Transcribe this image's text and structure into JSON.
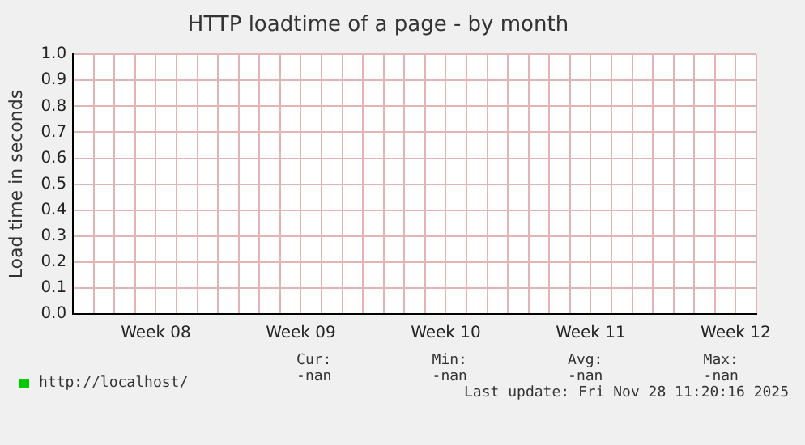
{
  "chart_data": {
    "type": "line",
    "title": "HTTP loadtime of a page - by month",
    "ylabel": "Load time in seconds",
    "categories": [
      null,
      null,
      null,
      null,
      "Week 08",
      null,
      null,
      null,
      null,
      null,
      null,
      "Week 09",
      null,
      null,
      null,
      null,
      null,
      null,
      "Week 10",
      null,
      null,
      null,
      null,
      null,
      null,
      "Week 11",
      null,
      null,
      null,
      null,
      null,
      null,
      "Week 12",
      null
    ],
    "series": [
      {
        "name": "http://localhost/",
        "color": "#00cc00",
        "values": [
          null,
          null,
          null,
          null,
          null,
          null,
          null,
          null,
          null,
          null,
          null,
          null,
          null,
          null,
          null,
          null,
          null,
          null,
          null,
          null,
          null,
          null,
          null,
          null,
          null,
          null,
          null,
          null,
          null,
          null,
          null,
          null,
          null,
          null
        ]
      }
    ],
    "ylim": [
      0,
      1
    ],
    "yticks": [
      {
        "value": 0,
        "label": "0.0"
      },
      0.1,
      0.2,
      0.3,
      0.4,
      0.5,
      0.6,
      0.7,
      0.8,
      0.9,
      {
        "value": 1,
        "label": "1.0"
      }
    ],
    "grid": true,
    "legend": "bottom",
    "annotations": [
      "Cur:",
      "Min:",
      "Avg:",
      "Max:",
      "-nan",
      "-nan",
      "-nan",
      "-nan",
      "Last update: Fri Nov 28 11:20:16 2025"
    ]
  }
}
